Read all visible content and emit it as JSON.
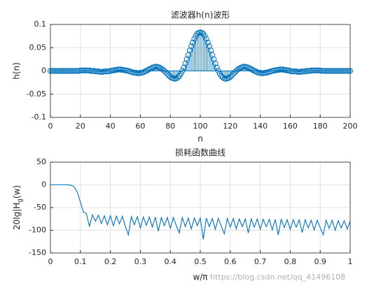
{
  "chart_data": [
    {
      "type": "stem",
      "title": "滤波器h(n)波形",
      "x_label": "n",
      "y_label": "h(n)",
      "color": "#0072bd",
      "grid": true,
      "xlim": [
        0,
        200
      ],
      "xticks": [
        0,
        20,
        40,
        60,
        80,
        100,
        120,
        140,
        160,
        180,
        200
      ],
      "ylim": [
        -0.1,
        0.1
      ],
      "yticks": [
        -0.1,
        -0.05,
        0,
        0.05,
        0.1
      ],
      "x": [
        0,
        1,
        2,
        3,
        4,
        5,
        6,
        7,
        8,
        9,
        10,
        11,
        12,
        13,
        14,
        15,
        16,
        17,
        18,
        19,
        20,
        21,
        22,
        23,
        24,
        25,
        26,
        27,
        28,
        29,
        30,
        31,
        32,
        33,
        34,
        35,
        36,
        37,
        38,
        39,
        40,
        41,
        42,
        43,
        44,
        45,
        46,
        47,
        48,
        49,
        50,
        51,
        52,
        53,
        54,
        55,
        56,
        57,
        58,
        59,
        60,
        61,
        62,
        63,
        64,
        65,
        66,
        67,
        68,
        69,
        70,
        71,
        72,
        73,
        74,
        75,
        76,
        77,
        78,
        79,
        80,
        81,
        82,
        83,
        84,
        85,
        86,
        87,
        88,
        89,
        90,
        91,
        92,
        93,
        94,
        95,
        96,
        97,
        98,
        99,
        100,
        101,
        102,
        103,
        104,
        105,
        106,
        107,
        108,
        109,
        110,
        111,
        112,
        113,
        114,
        115,
        116,
        117,
        118,
        119,
        120,
        121,
        122,
        123,
        124,
        125,
        126,
        127,
        128,
        129,
        130,
        131,
        132,
        133,
        134,
        135,
        136,
        137,
        138,
        139,
        140,
        141,
        142,
        143,
        144,
        145,
        146,
        147,
        148,
        149,
        150,
        151,
        152,
        153,
        154,
        155,
        156,
        157,
        158,
        159,
        160,
        161,
        162,
        163,
        164,
        165,
        166,
        167,
        168,
        169,
        170,
        171,
        172,
        173,
        174,
        175,
        176,
        177,
        178,
        179,
        180,
        181,
        182,
        183,
        184,
        185,
        186,
        187,
        188,
        189,
        190,
        191,
        192,
        193,
        194,
        195,
        196,
        197,
        198,
        199,
        200
      ],
      "values": [
        0,
        0,
        0,
        0,
        0,
        0,
        0,
        0,
        0,
        0,
        0,
        0,
        0,
        0,
        0,
        0,
        0,
        0,
        0,
        0,
        0.001,
        0.001,
        0.001,
        0.001,
        0.001,
        0.001,
        0.001,
        0,
        0,
        0,
        -0.001,
        -0.001,
        -0.001,
        -0.002,
        -0.002,
        -0.002,
        -0.001,
        -0.001,
        -0.001,
        -0.001,
        0,
        0.001,
        0.001,
        0.002,
        0.002,
        0.003,
        0.003,
        0.003,
        0.002,
        0.002,
        0.001,
        0.001,
        0,
        -0.001,
        -0.002,
        -0.003,
        -0.004,
        -0.004,
        -0.005,
        -0.005,
        -0.004,
        -0.004,
        -0.003,
        -0.001,
        0,
        0.002,
        0.004,
        0.005,
        0.007,
        0.008,
        0.009,
        0.009,
        0.008,
        0.007,
        0.005,
        0.003,
        0,
        -0.003,
        -0.006,
        -0.01,
        -0.013,
        -0.015,
        -0.016,
        -0.017,
        -0.016,
        -0.014,
        -0.011,
        -0.006,
        0,
        0.007,
        0.016,
        0.025,
        0.034,
        0.044,
        0.053,
        0.061,
        0.069,
        0.075,
        0.08,
        0.082,
        0.083,
        0.082,
        0.08,
        0.075,
        0.069,
        0.061,
        0.053,
        0.044,
        0.034,
        0.025,
        0.016,
        0.007,
        0,
        -0.006,
        -0.011,
        -0.014,
        -0.016,
        -0.017,
        -0.016,
        -0.015,
        -0.013,
        -0.01,
        -0.006,
        -0.003,
        0,
        0.003,
        0.005,
        0.007,
        0.008,
        0.009,
        0.009,
        0.008,
        0.007,
        0.005,
        0.004,
        0.002,
        0,
        -0.001,
        -0.003,
        -0.004,
        -0.004,
        -0.005,
        -0.005,
        -0.004,
        -0.004,
        -0.003,
        -0.002,
        -0.001,
        0,
        0.001,
        0.001,
        0.002,
        0.002,
        0.003,
        0.003,
        0.003,
        0.002,
        0.002,
        0.001,
        0.001,
        0,
        -0.001,
        -0.001,
        -0.001,
        -0.001,
        -0.002,
        -0.002,
        -0.002,
        -0.001,
        -0.001,
        -0.001,
        0,
        0,
        0,
        0.001,
        0.001,
        0.001,
        0.001,
        0.001,
        0.001,
        0.001,
        0,
        0,
        0,
        0,
        0,
        0,
        0,
        0,
        0,
        0,
        0,
        0,
        0,
        0,
        0,
        0,
        0,
        0,
        0,
        0
      ]
    },
    {
      "type": "line",
      "title": "损耗函数曲线",
      "x_label": "w/π",
      "y_label": [
        "20lg|H",
        "g",
        "(w)"
      ],
      "color": "#0072bd",
      "grid": true,
      "xlim": [
        0,
        1
      ],
      "xticks": [
        0,
        0.1,
        0.2,
        0.3,
        0.4,
        0.5,
        0.6,
        0.7,
        0.8,
        0.9,
        1
      ],
      "ylim": [
        -150,
        50
      ],
      "yticks": [
        -150,
        -100,
        -50,
        0,
        50
      ],
      "x": [
        0,
        0.01,
        0.02,
        0.03,
        0.04,
        0.05,
        0.06,
        0.07,
        0.08,
        0.09,
        0.1,
        0.11,
        0.12,
        0.13,
        0.14,
        0.15,
        0.16,
        0.17,
        0.18,
        0.19,
        0.2,
        0.21,
        0.22,
        0.23,
        0.24,
        0.25,
        0.26,
        0.27,
        0.28,
        0.29,
        0.3,
        0.31,
        0.32,
        0.33,
        0.34,
        0.35,
        0.36,
        0.37,
        0.38,
        0.39,
        0.4,
        0.41,
        0.42,
        0.43,
        0.44,
        0.45,
        0.46,
        0.47,
        0.48,
        0.49,
        0.5,
        0.51,
        0.52,
        0.53,
        0.54,
        0.55,
        0.56,
        0.57,
        0.58,
        0.59,
        0.6,
        0.61,
        0.62,
        0.63,
        0.64,
        0.65,
        0.66,
        0.67,
        0.68,
        0.69,
        0.7,
        0.71,
        0.72,
        0.73,
        0.74,
        0.75,
        0.76,
        0.77,
        0.78,
        0.79,
        0.8,
        0.81,
        0.82,
        0.83,
        0.84,
        0.85,
        0.86,
        0.87,
        0.88,
        0.89,
        0.9,
        0.91,
        0.92,
        0.93,
        0.94,
        0.95,
        0.96,
        0.97,
        0.98,
        0.99,
        1
      ],
      "values": [
        0,
        0,
        0,
        0,
        0,
        0,
        0,
        -1,
        -5,
        -17,
        -38,
        -60,
        -63,
        -92,
        -66,
        -80,
        -67,
        -85,
        -68,
        -88,
        -68,
        -90,
        -69,
        -86,
        -69,
        -92,
        -110,
        -70,
        -88,
        -70,
        -95,
        -71,
        -89,
        -71,
        -93,
        -71,
        -102,
        -72,
        -90,
        -72,
        -96,
        -72,
        -90,
        -106,
        -72,
        -92,
        -73,
        -97,
        -73,
        -90,
        -73,
        -120,
        -73,
        -92,
        -74,
        -98,
        -74,
        -91,
        -108,
        -74,
        -93,
        -74,
        -97,
        -75,
        -92,
        -75,
        -106,
        -75,
        -93,
        -75,
        -98,
        -76,
        -92,
        -76,
        -99,
        -76,
        -110,
        -76,
        -94,
        -77,
        -98,
        -77,
        -93,
        -77,
        -105,
        -77,
        -95,
        -78,
        -99,
        -78,
        -94,
        -110,
        -78,
        -96,
        -78,
        -100,
        -79,
        -95,
        -79,
        -97,
        -80
      ]
    }
  ],
  "watermark": "https://blog.csdn.net/qq_41496108"
}
